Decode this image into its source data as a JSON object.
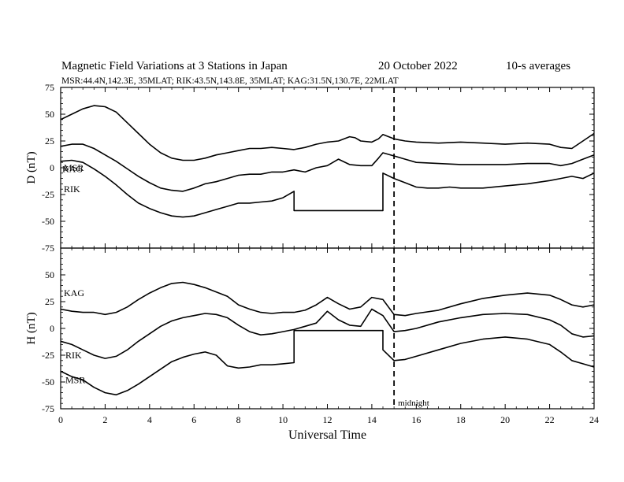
{
  "header": {
    "title": "Magnetic Field Variations at 3 Stations in Japan",
    "date": "20 October 2022",
    "averaging": "10-s averages",
    "stations_line": "MSR:44.4N,142.3E, 35MLAT;  RIK:43.5N,143.8E, 35MLAT;  KAG:31.5N,130.7E, 22MLAT"
  },
  "chart_data": [
    {
      "type": "line",
      "panel": "top",
      "ylabel": "D (nT)",
      "ylim": [
        -75,
        75
      ],
      "yticks": [
        75,
        50,
        25,
        0,
        -25,
        -50,
        -75
      ],
      "xlim": [
        0,
        24
      ],
      "grid": false,
      "series": [
        {
          "name": "KAG",
          "x": [
            0,
            0.5,
            1,
            1.5,
            2,
            2.5,
            3,
            3.5,
            4,
            4.5,
            5,
            5.5,
            6,
            6.5,
            7,
            7.5,
            8,
            8.5,
            9,
            9.5,
            10,
            10.5,
            11,
            11.5,
            12,
            12.5,
            13,
            13.25,
            13.5,
            14,
            14.3,
            14.5,
            15,
            15.5,
            16,
            17,
            18,
            19,
            20,
            21,
            22,
            22.5,
            23,
            23.5,
            24
          ],
          "y": [
            45,
            50,
            55,
            58,
            57,
            52,
            42,
            32,
            22,
            14,
            9,
            7,
            7,
            9,
            12,
            14,
            16,
            18,
            18,
            19,
            18,
            17,
            19,
            22,
            24,
            25,
            29,
            28,
            25,
            24,
            27,
            31,
            27,
            25,
            24,
            23,
            24,
            23,
            22,
            23,
            22,
            19,
            18,
            25,
            32
          ]
        },
        {
          "name": "RIK",
          "x": [
            0,
            0.5,
            1,
            1.5,
            2,
            2.5,
            3,
            3.5,
            4,
            4.5,
            5,
            5.5,
            6,
            6.5,
            7,
            7.5,
            8,
            8.5,
            9,
            9.5,
            10,
            10.5,
            11,
            11.5,
            12,
            12.5,
            13,
            13.5,
            14,
            14.3,
            14.5,
            15,
            15.5,
            16,
            17,
            18,
            19,
            20,
            21,
            22,
            22.5,
            23,
            23.5,
            24
          ],
          "y": [
            20,
            22,
            22,
            18,
            12,
            6,
            -1,
            -8,
            -14,
            -19,
            -21,
            -22,
            -19,
            -15,
            -13,
            -10,
            -7,
            -6,
            -6,
            -4,
            -4,
            -2,
            -4,
            0,
            2,
            8,
            3,
            2,
            2,
            9,
            14,
            11,
            8,
            5,
            4,
            3,
            3,
            3,
            4,
            4,
            2,
            4,
            8,
            12
          ]
        },
        {
          "name": "MSR",
          "x": [
            0,
            0.5,
            1,
            1.5,
            2,
            2.5,
            3,
            3.5,
            4,
            4.5,
            5,
            5.5,
            6,
            6.5,
            7,
            7.5,
            8,
            8.5,
            9,
            9.5,
            10,
            10.5,
            10.5,
            14.5,
            14.5,
            15,
            15.5,
            16,
            16.5,
            17,
            17.5,
            18,
            19,
            20,
            21,
            22,
            22.5,
            23,
            23.5,
            24
          ],
          "y": [
            6,
            7,
            5,
            -1,
            -8,
            -16,
            -25,
            -33,
            -38,
            -42,
            -45,
            -46,
            -45,
            -42,
            -39,
            -36,
            -33,
            -33,
            -32,
            -31,
            -28,
            -22,
            -40,
            -40,
            -5,
            -10,
            -14,
            -18,
            -19,
            -19,
            -18,
            -19,
            -19,
            -17,
            -15,
            -12,
            -10,
            -8,
            -10,
            -5
          ]
        }
      ]
    },
    {
      "type": "line",
      "panel": "bottom",
      "ylabel": "H (nT)",
      "ylim": [
        -75,
        75
      ],
      "yticks": [
        75,
        50,
        25,
        0,
        -25,
        -50,
        -75
      ],
      "xlim": [
        0,
        24
      ],
      "xticks": [
        0,
        2,
        4,
        6,
        8,
        10,
        12,
        14,
        16,
        18,
        20,
        22,
        24
      ],
      "xlabel": "Universal Time",
      "grid": false,
      "series": [
        {
          "name": "KAG",
          "x": [
            0,
            0.5,
            1,
            1.5,
            2,
            2.5,
            3,
            3.5,
            4,
            4.5,
            5,
            5.5,
            6,
            6.5,
            7,
            7.5,
            8,
            8.5,
            9,
            9.5,
            10,
            10.5,
            11,
            11.5,
            12,
            12.5,
            13,
            13.5,
            14,
            14.5,
            15,
            15.5,
            16,
            17,
            18,
            19,
            20,
            21,
            22,
            22.5,
            23,
            23.5,
            24
          ],
          "y": [
            18,
            16,
            15,
            15,
            13,
            15,
            20,
            27,
            33,
            38,
            42,
            43,
            41,
            38,
            34,
            30,
            22,
            18,
            15,
            14,
            15,
            15,
            17,
            22,
            29,
            23,
            18,
            20,
            29,
            27,
            13,
            12,
            14,
            17,
            23,
            28,
            31,
            33,
            31,
            27,
            22,
            20,
            22
          ]
        },
        {
          "name": "RIK",
          "x": [
            0,
            0.5,
            1,
            1.5,
            2,
            2.5,
            3,
            3.5,
            4,
            4.5,
            5,
            5.5,
            6,
            6.5,
            7,
            7.5,
            8,
            8.5,
            9,
            9.5,
            10,
            10.5,
            11,
            11.5,
            12,
            12.5,
            13,
            13.5,
            14,
            14.5,
            15,
            15.5,
            16,
            17,
            18,
            19,
            20,
            21,
            22,
            22.5,
            23,
            23.5,
            24
          ],
          "y": [
            -12,
            -15,
            -20,
            -25,
            -28,
            -26,
            -20,
            -12,
            -5,
            2,
            7,
            10,
            12,
            14,
            13,
            10,
            3,
            -3,
            -6,
            -5,
            -3,
            -1,
            2,
            5,
            16,
            8,
            3,
            2,
            18,
            12,
            -3,
            -2,
            0,
            6,
            10,
            13,
            14,
            13,
            8,
            3,
            -5,
            -8,
            -7
          ]
        },
        {
          "name": "MSR",
          "x": [
            0,
            0.5,
            1,
            1.5,
            2,
            2.5,
            3,
            3.5,
            4,
            4.5,
            5,
            5.5,
            6,
            6.5,
            7,
            7.5,
            8,
            8.5,
            9,
            9.5,
            10,
            10.5,
            10.5,
            14.5,
            14.5,
            15,
            15.5,
            16,
            17,
            18,
            19,
            20,
            21,
            22,
            22.5,
            23,
            23.5,
            24
          ],
          "y": [
            -40,
            -45,
            -48,
            -55,
            -60,
            -62,
            -58,
            -52,
            -45,
            -38,
            -31,
            -27,
            -24,
            -22,
            -25,
            -35,
            -37,
            -36,
            -34,
            -34,
            -33,
            -32,
            -2,
            -2,
            -20,
            -30,
            -29,
            -26,
            -20,
            -14,
            -10,
            -8,
            -10,
            -15,
            -22,
            -30,
            -33,
            -36
          ]
        }
      ]
    }
  ],
  "annotations": {
    "midnight_marker_x": 15,
    "midnight_label": "midnight"
  }
}
